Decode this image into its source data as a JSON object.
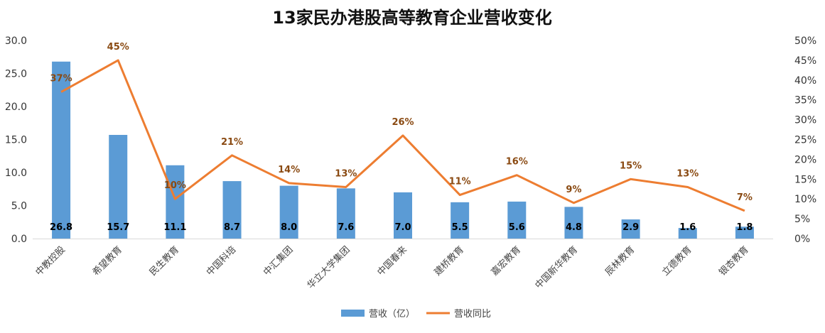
{
  "chart_data": {
    "type": "bar",
    "title": "13家民办港股高等教育企业营收变化",
    "categories": [
      "中教控股",
      "希望教育",
      "民生教育",
      "中国科培",
      "中汇集团",
      "华立大学集团",
      "中国春来",
      "建桥教育",
      "嘉宏教育",
      "中国新华教育",
      "辰林教育",
      "立德教育",
      "银杏教育"
    ],
    "series": [
      {
        "name": "营收（亿）",
        "type": "bar",
        "axis": "left",
        "values": [
          26.8,
          15.7,
          11.1,
          8.7,
          8.0,
          7.6,
          7.0,
          5.5,
          5.6,
          4.8,
          2.9,
          1.6,
          1.8
        ],
        "labels": [
          "26.8",
          "15.7",
          "11.1",
          "8.7",
          "8.0",
          "7.6",
          "7.0",
          "5.5",
          "5.6",
          "4.8",
          "2.9",
          "1.6",
          "1.8"
        ]
      },
      {
        "name": "营收同比",
        "type": "line",
        "axis": "right",
        "values": [
          37,
          45,
          10,
          21,
          14,
          13,
          26,
          11,
          16,
          9,
          15,
          13,
          7
        ],
        "labels": [
          "37%",
          "45%",
          "10%",
          "21%",
          "14%",
          "13%",
          "26%",
          "11%",
          "16%",
          "9%",
          "15%",
          "13%",
          "7%"
        ]
      }
    ],
    "y_left": {
      "ylim": [
        0,
        30
      ],
      "ticks": [
        "0.0",
        "5.0",
        "10.0",
        "15.0",
        "20.0",
        "25.0",
        "30.0"
      ]
    },
    "y_right": {
      "ylim": [
        0,
        50
      ],
      "ticks": [
        "0%",
        "5%",
        "10%",
        "15%",
        "20%",
        "25%",
        "30%",
        "35%",
        "40%",
        "45%",
        "50%"
      ]
    },
    "grid": false,
    "legend_position": "bottom-center",
    "colors": {
      "bar": "#5b9bd5",
      "line": "#ed7d31",
      "line_label": "#8a4a12"
    }
  }
}
